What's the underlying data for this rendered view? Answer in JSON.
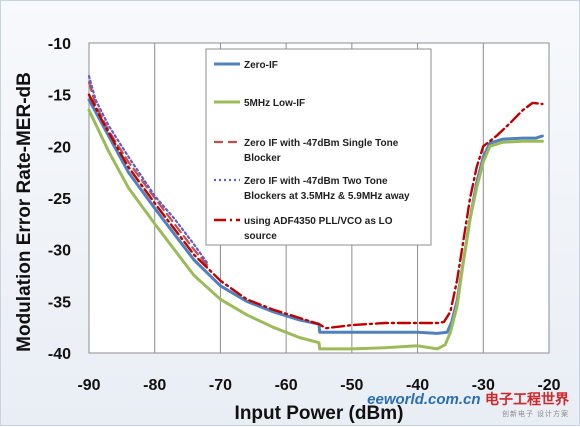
{
  "chart_data": {
    "type": "line",
    "xlabel": "Input Power (dBm)",
    "ylabel": "Modulation Error Rate-MER-dB",
    "xlim": [
      -90,
      -20
    ],
    "ylim": [
      -40,
      -10
    ],
    "xticks": [
      "-90",
      "-80",
      "-70",
      "-60",
      "-50",
      "-40",
      "-30",
      "-20"
    ],
    "yticks": [
      "-10",
      "-15",
      "-20",
      "-25",
      "-30",
      "-35",
      "-40"
    ],
    "grid": "vertical",
    "legend_position": "upper-center",
    "series": [
      {
        "name": "Zero-IF",
        "color": "#4f81bd",
        "style": "solid",
        "points": [
          [
            -90,
            -15.5
          ],
          [
            -87,
            -19
          ],
          [
            -84,
            -22.5
          ],
          [
            -80,
            -26
          ],
          [
            -77,
            -28.5
          ],
          [
            -74,
            -31
          ],
          [
            -70,
            -33.5
          ],
          [
            -66,
            -35
          ],
          [
            -62,
            -36
          ],
          [
            -58,
            -36.8
          ],
          [
            -55,
            -37.2
          ],
          [
            -54.9,
            -38
          ],
          [
            -50,
            -38
          ],
          [
            -45,
            -38
          ],
          [
            -40,
            -38
          ],
          [
            -37,
            -38.1
          ],
          [
            -35.5,
            -38
          ],
          [
            -34.8,
            -37
          ],
          [
            -34,
            -35
          ],
          [
            -33,
            -31
          ],
          [
            -32,
            -27
          ],
          [
            -31,
            -23.5
          ],
          [
            -30,
            -21
          ],
          [
            -29,
            -19.7
          ],
          [
            -27,
            -19.3
          ],
          [
            -24,
            -19.2
          ],
          [
            -22,
            -19.2
          ],
          [
            -21,
            -19
          ]
        ]
      },
      {
        "name": "5MHz Low-IF",
        "color": "#9bbb59",
        "style": "solid",
        "points": [
          [
            -90,
            -16.5
          ],
          [
            -87,
            -20.5
          ],
          [
            -84,
            -24
          ],
          [
            -80,
            -27.5
          ],
          [
            -77,
            -30
          ],
          [
            -74,
            -32.5
          ],
          [
            -70,
            -34.8
          ],
          [
            -66,
            -36.3
          ],
          [
            -62,
            -37.5
          ],
          [
            -58,
            -38.5
          ],
          [
            -55,
            -39
          ],
          [
            -54.9,
            -39.6
          ],
          [
            -50,
            -39.6
          ],
          [
            -45,
            -39.5
          ],
          [
            -40,
            -39.3
          ],
          [
            -37,
            -39.6
          ],
          [
            -35.8,
            -39.2
          ],
          [
            -35,
            -38
          ],
          [
            -34,
            -35.5
          ],
          [
            -33,
            -31
          ],
          [
            -32,
            -27
          ],
          [
            -31,
            -24
          ],
          [
            -30,
            -21.5
          ],
          [
            -29,
            -20
          ],
          [
            -27,
            -19.6
          ],
          [
            -24,
            -19.5
          ],
          [
            -21,
            -19.5
          ]
        ]
      },
      {
        "name": "Zero IF with -47dBm Single Tone Blocker",
        "color": "#c0504d",
        "style": "dash",
        "points": [
          [
            -90,
            -13.8
          ],
          [
            -89,
            -16
          ],
          [
            -87,
            -18.5
          ],
          [
            -84,
            -21.5
          ],
          [
            -80,
            -25
          ],
          [
            -77,
            -27.5
          ],
          [
            -74,
            -30
          ],
          [
            -72,
            -31.5
          ]
        ]
      },
      {
        "name": "Zero IF with -47dBm Two Tone Blockers at 3.5MHz & 5.9MHz away",
        "color": "#5b5fc7",
        "style": "dot",
        "points": [
          [
            -90,
            -13.2
          ],
          [
            -89,
            -15.5
          ],
          [
            -87,
            -18
          ],
          [
            -84,
            -21
          ],
          [
            -80,
            -24.8
          ],
          [
            -77,
            -27
          ],
          [
            -74,
            -29.5
          ],
          [
            -72,
            -31.3
          ]
        ]
      },
      {
        "name": "using ADF4350 PLL/VCO as LO source",
        "color": "#c00000",
        "style": "dashdot",
        "points": [
          [
            -90,
            -15
          ],
          [
            -88,
            -17.5
          ],
          [
            -86,
            -19.8
          ],
          [
            -84,
            -22
          ],
          [
            -80,
            -25.5
          ],
          [
            -77,
            -28
          ],
          [
            -74,
            -30.5
          ],
          [
            -70,
            -33
          ],
          [
            -66,
            -34.8
          ],
          [
            -62,
            -35.8
          ],
          [
            -58,
            -36.6
          ],
          [
            -55,
            -37.2
          ],
          [
            -54,
            -37.6
          ],
          [
            -50,
            -37.3
          ],
          [
            -45,
            -37.1
          ],
          [
            -40,
            -37.1
          ],
          [
            -37,
            -37.1
          ],
          [
            -36,
            -37
          ],
          [
            -35,
            -36
          ],
          [
            -34,
            -33
          ],
          [
            -33,
            -29
          ],
          [
            -32,
            -25
          ],
          [
            -31,
            -22
          ],
          [
            -30,
            -20
          ],
          [
            -28,
            -19
          ],
          [
            -26,
            -17.8
          ],
          [
            -24,
            -16.5
          ],
          [
            -22.5,
            -15.8
          ],
          [
            -21,
            -15.9
          ]
        ]
      }
    ]
  },
  "legend": {
    "items": [
      "Zero-IF",
      "5MHz Low-IF",
      "Zero IF with -47dBm Single Tone Blocker",
      "Zero IF with -47dBm Two Tone Blockers at 3.5MHz & 5.9MHz away",
      "using ADF4350 PLL/VCO as LO source"
    ]
  },
  "watermark": {
    "cn_text": "电子工程世界",
    "brand": "eeworld.com.cn",
    "sub": "创新电子 设计方案"
  }
}
